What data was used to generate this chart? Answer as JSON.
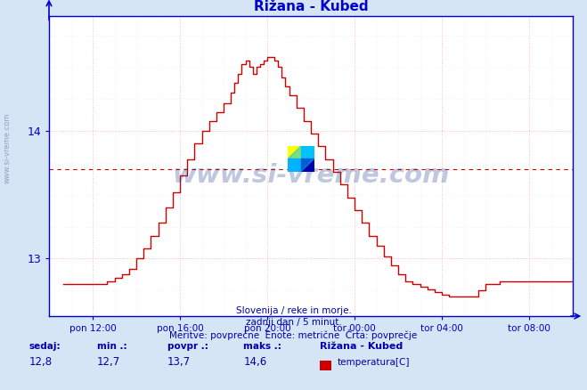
{
  "title": "Rižana - Kubed",
  "title_color": "#0000cc",
  "bg_color": "#d5e5f5",
  "plot_bg_color": "#ffffff",
  "line_color": "#cc0000",
  "avg_line_color": "#cc0000",
  "grid_color_blue": "#ccccff",
  "grid_color_pink": "#ffcccc",
  "axis_color": "#0000cc",
  "tick_color": "#0000aa",
  "footer_color": "#0000aa",
  "footer_line1": "Slovenija / reke in morje.",
  "footer_line2": "zadnji dan / 5 minut.",
  "footer_line3": "Meritve: povprečne  Enote: metrične  Črta: povprečje",
  "legend_station": "Rižana - Kubed",
  "legend_var": "temperatura[C]",
  "legend_color": "#cc0000",
  "stat_sedaj_label": "sedaj:",
  "stat_sedaj": "12,8",
  "stat_min_label": "min .:",
  "stat_min": "12,7",
  "stat_povpr_label": "povpr .:",
  "stat_povpr": "13,7",
  "stat_maks_label": "maks .:",
  "stat_maks": "14,6",
  "watermark": "www.si-vreme.com",
  "sivreme_vertical": "www.si-vreme.com",
  "xtick_labels": [
    "pon 12:00",
    "pon 16:00",
    "pon 20:00",
    "tor 00:00",
    "tor 04:00",
    "tor 08:00"
  ],
  "xtick_positions": [
    2,
    6,
    10,
    14,
    18,
    22
  ],
  "ytick_positions": [
    13.0,
    14.0
  ],
  "ytick_labels": [
    "13",
    "14"
  ],
  "ylim_lo": 12.55,
  "ylim_hi": 14.9,
  "xlim_lo": 0.0,
  "xlim_hi": 24.0,
  "avg_value": 13.7,
  "profile_x": [
    0.67,
    1.0,
    1.33,
    1.67,
    2.0,
    2.33,
    2.67,
    3.0,
    3.33,
    3.67,
    4.0,
    4.33,
    4.67,
    5.0,
    5.33,
    5.67,
    6.0,
    6.33,
    6.67,
    7.0,
    7.33,
    7.67,
    8.0,
    8.33,
    8.5,
    8.67,
    8.83,
    9.0,
    9.17,
    9.33,
    9.5,
    9.67,
    9.83,
    10.0,
    10.17,
    10.33,
    10.5,
    10.67,
    10.83,
    11.0,
    11.33,
    11.67,
    12.0,
    12.33,
    12.67,
    13.0,
    13.33,
    13.67,
    14.0,
    14.33,
    14.67,
    15.0,
    15.33,
    15.67,
    16.0,
    16.33,
    16.67,
    17.0,
    17.33,
    17.67,
    18.0,
    18.33,
    18.67,
    19.0,
    19.33,
    19.67,
    20.0,
    20.33,
    20.67,
    21.0,
    21.33,
    21.67,
    22.0,
    22.33,
    22.67,
    24.0
  ],
  "profile_y": [
    12.8,
    12.8,
    12.8,
    12.8,
    12.8,
    12.8,
    12.82,
    12.85,
    12.88,
    12.92,
    13.0,
    13.08,
    13.18,
    13.28,
    13.4,
    13.52,
    13.65,
    13.78,
    13.9,
    14.0,
    14.08,
    14.15,
    14.22,
    14.3,
    14.38,
    14.45,
    14.52,
    14.55,
    14.5,
    14.45,
    14.5,
    14.52,
    14.55,
    14.58,
    14.58,
    14.55,
    14.5,
    14.42,
    14.35,
    14.28,
    14.18,
    14.08,
    13.98,
    13.88,
    13.78,
    13.68,
    13.58,
    13.48,
    13.38,
    13.28,
    13.18,
    13.1,
    13.02,
    12.95,
    12.88,
    12.82,
    12.8,
    12.78,
    12.76,
    12.74,
    12.72,
    12.7,
    12.7,
    12.7,
    12.7,
    12.75,
    12.8,
    12.8,
    12.82,
    12.82,
    12.82,
    12.82,
    12.82,
    12.82,
    12.82,
    12.82
  ]
}
